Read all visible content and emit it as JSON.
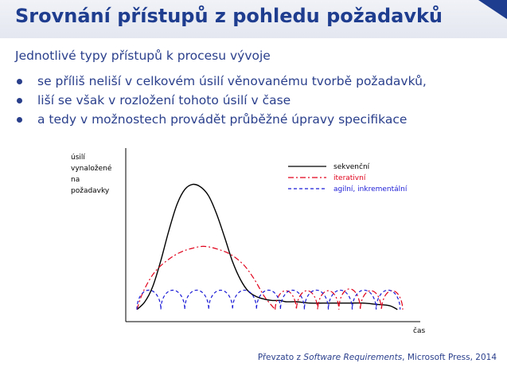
{
  "slide": {
    "title": "Srovnání přístupů z pohledu požadavků",
    "subtitle": "Jednotlivé typy přístupů k procesu vývoje",
    "bullets": [
      "se příliš neliší v celkovém úsilí věnovanému tvorbě požadavků,",
      "liší se však v rozložení tohoto úsilí v čase",
      "a tedy v možnostech provádět průběžné úpravy specifikace"
    ],
    "footer": {
      "prefix": "Převzato z ",
      "source": "Software Requirements",
      "suffix": ", Microsoft Press, 2014"
    }
  },
  "colors": {
    "title": "#1f3d8f",
    "text": "#2a3f8c",
    "sequential": "#000000",
    "iterative": "#e0001a",
    "agile": "#1a1ad6"
  },
  "chart_data": {
    "type": "line",
    "title": "",
    "ylabel_lines": [
      "úsilí",
      "vynaložené",
      "na",
      "požadavky"
    ],
    "xlabel": "čas",
    "xlim": [
      0,
      100
    ],
    "ylim": [
      0,
      100
    ],
    "grid": false,
    "legend_position": "top-right",
    "series": [
      {
        "name": "sekvenční",
        "style": "solid",
        "color": "#000000",
        "x": [
          0,
          3,
          6,
          9,
          12,
          15,
          18,
          21,
          24,
          27,
          30,
          33,
          36,
          39,
          42,
          45,
          48,
          51,
          54,
          56,
          60,
          65,
          70,
          75,
          80,
          85,
          90,
          95,
          98
        ],
        "y": [
          2,
          8,
          20,
          40,
          63,
          83,
          95,
          99,
          97,
          90,
          76,
          58,
          39,
          25,
          16,
          12,
          10,
          9,
          9,
          8,
          8,
          7,
          7,
          7,
          7,
          7,
          6,
          5,
          2
        ]
      },
      {
        "name": "iterativní",
        "style": "dash-dot",
        "color": "#e0001a",
        "x": [
          0,
          2,
          5,
          8,
          12,
          16,
          20,
          25,
          30,
          35,
          40,
          44,
          48,
          52,
          56,
          60,
          64,
          68,
          72,
          76,
          80,
          84,
          88,
          92,
          96,
          100
        ],
        "y": [
          2,
          14,
          26,
          34,
          41,
          46,
          49,
          51,
          49,
          45,
          37,
          26,
          12,
          2,
          18,
          2,
          18,
          2,
          18,
          2,
          18,
          2,
          18,
          2,
          18,
          2
        ],
        "segments_note": ""
      },
      {
        "name": "agilní, inkrementální",
        "style": "dashed",
        "color": "#1a1ad6",
        "x": [
          0,
          4.5,
          9,
          13.5,
          18,
          22.5,
          27,
          31.5,
          36,
          40.5,
          45,
          49.5,
          54,
          58.5,
          63,
          67.5,
          72,
          76.5,
          81,
          85.5,
          90,
          94.5,
          99
        ],
        "y": [
          2,
          17,
          2,
          17,
          2,
          17,
          2,
          17,
          2,
          17,
          2,
          17,
          2,
          17,
          2,
          17,
          2,
          17,
          2,
          17,
          2,
          17,
          2
        ]
      }
    ]
  }
}
